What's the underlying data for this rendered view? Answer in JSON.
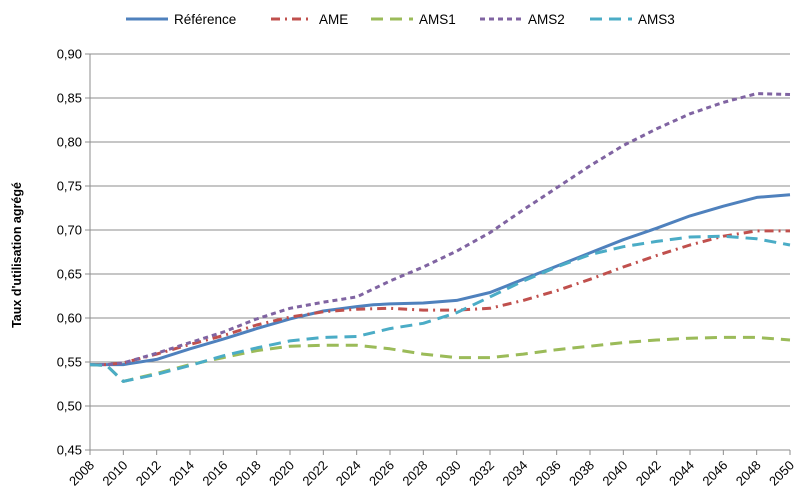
{
  "chart_data": {
    "type": "line",
    "title": "",
    "xlabel": "",
    "ylabel": "Taux d'utilisation agrégé",
    "x": [
      2008,
      2010,
      2012,
      2014,
      2016,
      2018,
      2020,
      2022,
      2024,
      2026,
      2028,
      2030,
      2032,
      2034,
      2036,
      2038,
      2040,
      2042,
      2044,
      2046,
      2048,
      2050
    ],
    "x_tick_labels": [
      "2008",
      "2010",
      "2012",
      "2014",
      "2016",
      "2018",
      "2020",
      "2022",
      "2024",
      "2026",
      "2028",
      "2030",
      "2032",
      "2034",
      "2036",
      "2038",
      "2040",
      "2042",
      "2044",
      "2046",
      "2048",
      "2050"
    ],
    "ylim": [
      0.45,
      0.9
    ],
    "y_ticks": [
      0.45,
      0.5,
      0.55,
      0.6,
      0.65,
      0.7,
      0.75,
      0.8,
      0.85,
      0.9
    ],
    "y_tick_labels": [
      "0,45",
      "0,50",
      "0,55",
      "0,60",
      "0,65",
      "0,70",
      "0,75",
      "0,80",
      "0,85",
      "0,90"
    ],
    "grid": true,
    "legend_position": "top",
    "series": [
      {
        "name": "Référence",
        "color": "#4f81bd",
        "style": "solid",
        "x": [
          2008,
          2009,
          2010,
          2012,
          2014,
          2016,
          2018,
          2020,
          2022,
          2024,
          2025,
          2026,
          2028,
          2030,
          2032,
          2034,
          2036,
          2038,
          2040,
          2042,
          2044,
          2046,
          2048,
          2050
        ],
        "values": [
          0.547,
          0.547,
          0.547,
          0.553,
          0.565,
          0.576,
          0.588,
          0.599,
          0.608,
          0.613,
          0.615,
          0.616,
          0.617,
          0.62,
          0.629,
          0.644,
          0.659,
          0.674,
          0.689,
          0.702,
          0.716,
          0.727,
          0.737,
          0.74
        ]
      },
      {
        "name": "AME",
        "color": "#c0504d",
        "style": "dashdot",
        "x": [
          2008,
          2009,
          2010,
          2012,
          2014,
          2016,
          2018,
          2020,
          2022,
          2024,
          2026,
          2028,
          2030,
          2032,
          2034,
          2036,
          2038,
          2040,
          2042,
          2044,
          2046,
          2048,
          2050
        ],
        "values": [
          0.547,
          0.547,
          0.549,
          0.559,
          0.57,
          0.58,
          0.592,
          0.601,
          0.607,
          0.61,
          0.611,
          0.609,
          0.609,
          0.611,
          0.62,
          0.631,
          0.644,
          0.658,
          0.671,
          0.683,
          0.693,
          0.699,
          0.699
        ]
      },
      {
        "name": "AMS1",
        "color": "#9bbb59",
        "style": "longdash",
        "x": [
          2008,
          2009,
          2010,
          2012,
          2014,
          2016,
          2018,
          2020,
          2022,
          2024,
          2026,
          2028,
          2030,
          2032,
          2034,
          2036,
          2038,
          2040,
          2042,
          2044,
          2046,
          2048,
          2050
        ],
        "values": [
          0.547,
          0.546,
          0.528,
          0.537,
          0.547,
          0.555,
          0.563,
          0.568,
          0.569,
          0.569,
          0.565,
          0.559,
          0.555,
          0.555,
          0.559,
          0.564,
          0.568,
          0.572,
          0.575,
          0.577,
          0.578,
          0.578,
          0.575
        ]
      },
      {
        "name": "AMS2",
        "color": "#8064a2",
        "style": "shortdash",
        "x": [
          2008,
          2009,
          2010,
          2012,
          2014,
          2016,
          2018,
          2020,
          2022,
          2024,
          2026,
          2028,
          2030,
          2032,
          2034,
          2036,
          2038,
          2040,
          2042,
          2044,
          2046,
          2048,
          2050
        ],
        "values": [
          0.547,
          0.547,
          0.549,
          0.56,
          0.572,
          0.584,
          0.599,
          0.611,
          0.618,
          0.624,
          0.642,
          0.658,
          0.676,
          0.697,
          0.723,
          0.748,
          0.773,
          0.796,
          0.815,
          0.832,
          0.845,
          0.855,
          0.854
        ]
      },
      {
        "name": "AMS3",
        "color": "#4bacc6",
        "style": "longdash",
        "x": [
          2008,
          2009,
          2010,
          2012,
          2014,
          2016,
          2018,
          2020,
          2022,
          2024,
          2026,
          2028,
          2030,
          2032,
          2034,
          2036,
          2038,
          2040,
          2042,
          2044,
          2046,
          2048,
          2050
        ],
        "values": [
          0.547,
          0.546,
          0.528,
          0.536,
          0.546,
          0.557,
          0.566,
          0.574,
          0.578,
          0.579,
          0.588,
          0.594,
          0.606,
          0.624,
          0.642,
          0.658,
          0.672,
          0.681,
          0.687,
          0.692,
          0.693,
          0.69,
          0.683
        ]
      }
    ]
  }
}
